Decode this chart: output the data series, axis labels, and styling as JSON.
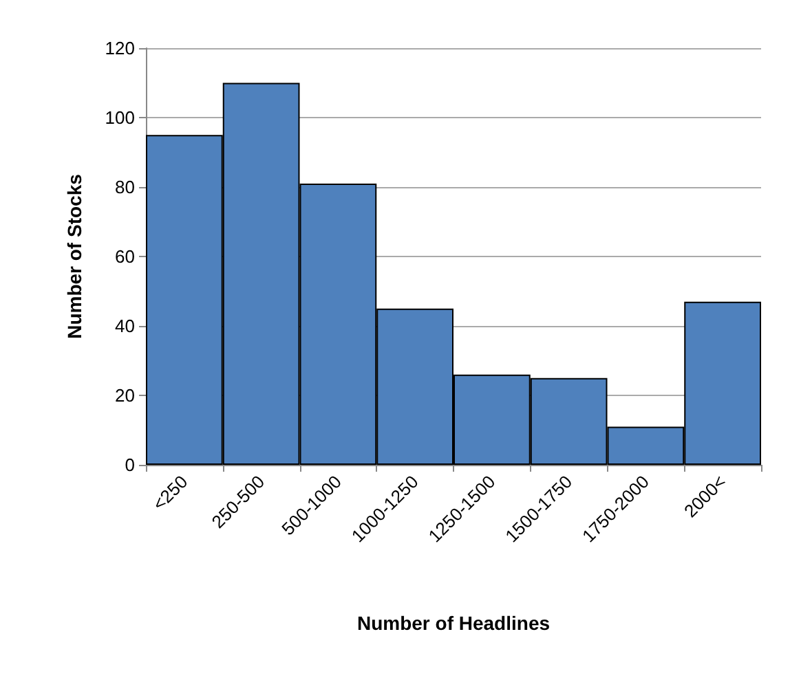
{
  "chart_data": {
    "type": "bar",
    "xlabel": "Number of Headlines",
    "ylabel": "Number of Stocks",
    "categories": [
      "<250",
      "250-500",
      "500-1000",
      "1000-1250",
      "1250-1500",
      "1500-1750",
      "1750-2000",
      "2000<"
    ],
    "values": [
      95,
      110,
      81,
      45,
      26,
      25,
      11,
      47
    ],
    "color": "#4f81bd",
    "ylim": [
      0,
      120
    ],
    "yticks": [
      0,
      20,
      40,
      60,
      80,
      100,
      120
    ],
    "grid": "y"
  }
}
